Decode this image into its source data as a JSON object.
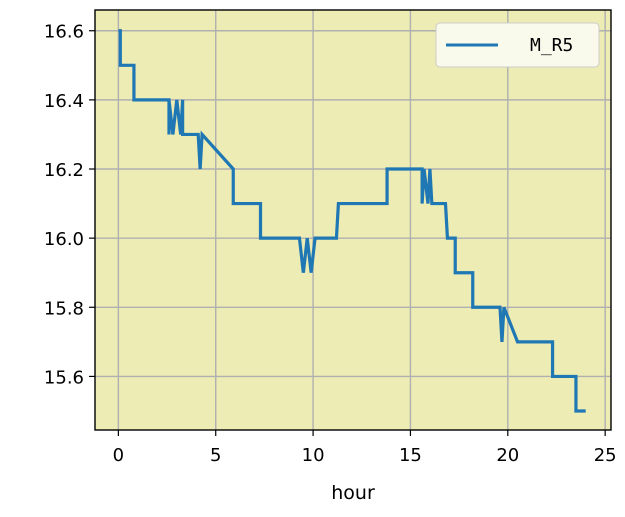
{
  "chart_data": {
    "type": "line",
    "title": "",
    "xlabel": "hour",
    "ylabel": "",
    "xlim": [
      -1.2,
      25.3
    ],
    "ylim": [
      15.445,
      16.66
    ],
    "xticks": [
      0,
      5,
      10,
      15,
      20,
      25
    ],
    "xtick_labels": [
      "0",
      "5",
      "10",
      "15",
      "20",
      "25"
    ],
    "yticks": [
      15.6,
      15.8,
      16.0,
      16.2,
      16.4,
      16.6
    ],
    "ytick_labels": [
      "15.6",
      "15.8",
      "16.0",
      "16.2",
      "16.4",
      "16.6"
    ],
    "grid": true,
    "legend_position": "top-right",
    "plot_background": "#ececb4",
    "series": [
      {
        "name": "M_R5",
        "color": "#1f77b4",
        "x": [
          0.0,
          0.05,
          0.1,
          0.1,
          0.8,
          0.8,
          1.0,
          2.6,
          2.6,
          2.6,
          2.8,
          3.0,
          3.2,
          3.3,
          3.3,
          4.1,
          4.2,
          4.3,
          5.9,
          5.9,
          7.3,
          7.3,
          9.3,
          9.5,
          9.7,
          9.9,
          10.1,
          11.2,
          11.3,
          13.8,
          13.8,
          15.6,
          15.6,
          15.7,
          15.9,
          16.0,
          16.1,
          16.8,
          16.9,
          17.3,
          17.3,
          18.2,
          18.2,
          19.6,
          19.7,
          19.8,
          20.5,
          22.3,
          22.3,
          23.5,
          23.5,
          24.0
        ],
        "y": [
          16.6,
          16.6,
          16.6,
          16.5,
          16.5,
          16.4,
          16.4,
          16.4,
          16.3,
          16.4,
          16.3,
          16.4,
          16.3,
          16.4,
          16.3,
          16.3,
          16.2,
          16.3,
          16.2,
          16.1,
          16.1,
          16.0,
          16.0,
          15.9,
          16.0,
          15.9,
          16.0,
          16.0,
          16.1,
          16.1,
          16.2,
          16.2,
          16.1,
          16.2,
          16.1,
          16.2,
          16.1,
          16.1,
          16.0,
          16.0,
          15.9,
          15.9,
          15.8,
          15.8,
          15.7,
          15.8,
          15.7,
          15.7,
          15.6,
          15.6,
          15.5,
          15.5
        ]
      }
    ]
  }
}
